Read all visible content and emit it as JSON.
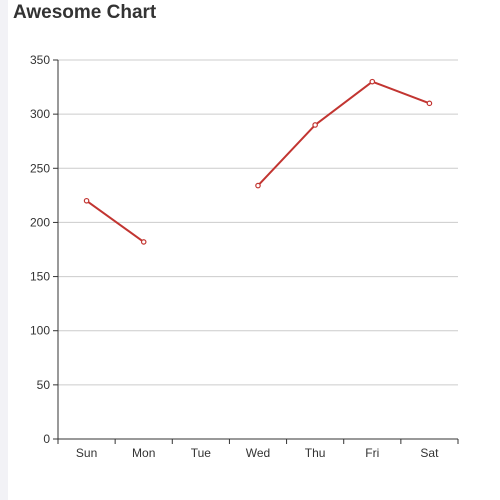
{
  "chart_data": {
    "type": "line",
    "title": "Awesome Chart",
    "categories": [
      "Sun",
      "Mon",
      "Tue",
      "Wed",
      "Thu",
      "Fri",
      "Sat"
    ],
    "series": [
      {
        "values": [
          220,
          182,
          null,
          234,
          290,
          330,
          310
        ]
      }
    ],
    "ylim": [
      0,
      350
    ],
    "yticks": [
      0,
      50,
      100,
      150,
      200,
      250,
      300,
      350
    ],
    "xlabel": "",
    "ylabel": "",
    "grid": true,
    "line_color": "#c23531",
    "grid_color": "#cccccc",
    "axis_color": "#333333"
  }
}
